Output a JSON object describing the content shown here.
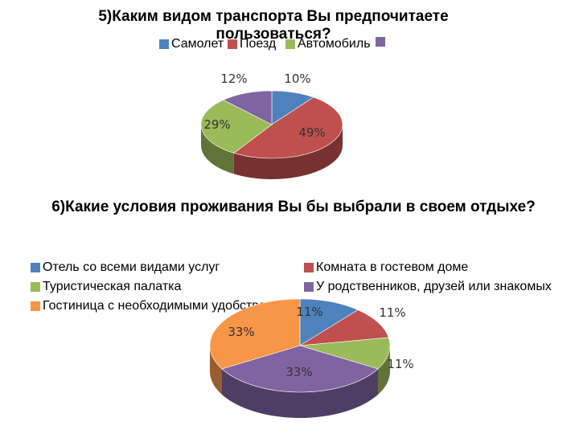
{
  "chart_data": [
    {
      "type": "pie",
      "title": "5)Каким видом транспорта Вы предпочитаете пользоваться?",
      "categories": [
        "Самолет",
        "Поезд",
        "Автомобиль",
        ""
      ],
      "values": [
        10,
        49,
        29,
        12
      ],
      "data_labels": [
        "10%",
        "49%",
        "29%",
        "12%"
      ],
      "colors": [
        "#4f81bd",
        "#c0504d",
        "#9bbb59",
        "#8064a2"
      ],
      "legend_position": "top",
      "style": "3d"
    },
    {
      "type": "pie",
      "title": "6)Какие условия проживания Вы бы выбрали в своем отдыхе?",
      "categories": [
        "Отель со всеми видами услуг",
        "Комната в гостевом доме",
        "Туристическая палатка",
        "У родственников, друзей или знакомых",
        "Гостиница с необходимыми удобствами"
      ],
      "values": [
        11,
        11,
        11,
        33,
        33
      ],
      "data_labels": [
        "11%",
        "11%",
        "11%",
        "33%",
        "33%"
      ],
      "colors": [
        "#4f81bd",
        "#c0504d",
        "#9bbb59",
        "#8064a2",
        "#f79646"
      ],
      "legend_position": "top",
      "style": "3d"
    }
  ]
}
